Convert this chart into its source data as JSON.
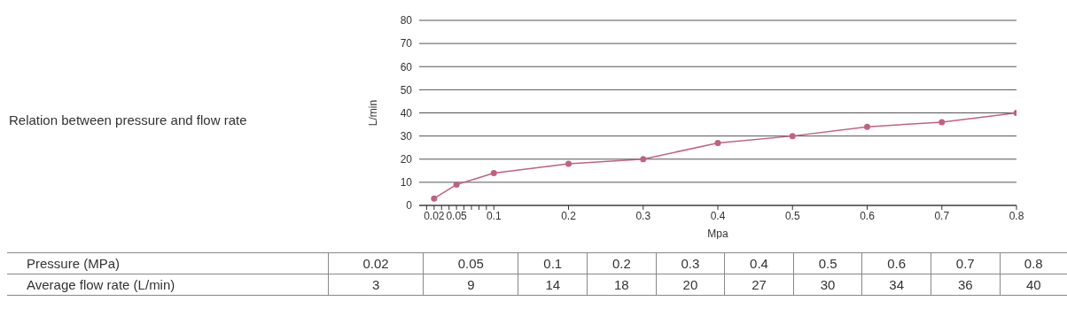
{
  "chart_data": {
    "type": "line",
    "title": "Relation between pressure and flow rate",
    "xlabel": "Mpa",
    "ylabel": "L/min",
    "x": [
      0.02,
      0.05,
      0.1,
      0.2,
      0.3,
      0.4,
      0.5,
      0.6,
      0.7,
      0.8
    ],
    "series": [
      {
        "name": "Average flow rate (L/min)",
        "color": "#c0627f",
        "values": [
          3,
          9,
          14,
          18,
          20,
          27,
          30,
          34,
          36,
          40
        ]
      }
    ],
    "xlim": [
      0,
      0.8
    ],
    "xticks": [
      {
        "value": 0.01,
        "label": null
      },
      0.02,
      {
        "value": 0.03,
        "label": null
      },
      {
        "value": 0.04,
        "label": null
      },
      0.05,
      {
        "value": 0.06,
        "label": null
      },
      {
        "value": 0.07,
        "label": null
      },
      {
        "value": 0.08,
        "label": null
      },
      {
        "value": 0.09,
        "label": null
      },
      0.1,
      0.2,
      0.3,
      0.4,
      0.5,
      0.6,
      0.7,
      0.8
    ],
    "ylim": [
      0,
      80
    ],
    "yticks": [
      0,
      10,
      20,
      30,
      40,
      50,
      60,
      70,
      80
    ],
    "grid": "y",
    "marker": "circle",
    "line_style": "solid",
    "annotations": [
      "Pressure (MPa)",
      "0.02",
      "0.05",
      "0.1",
      "0.2",
      "0.3",
      "0.4",
      "0.5",
      "0.6",
      "0.7",
      "0.8",
      "3",
      "9",
      "14",
      "18",
      "20",
      "27",
      "30",
      "34",
      "36",
      "40"
    ]
  }
}
